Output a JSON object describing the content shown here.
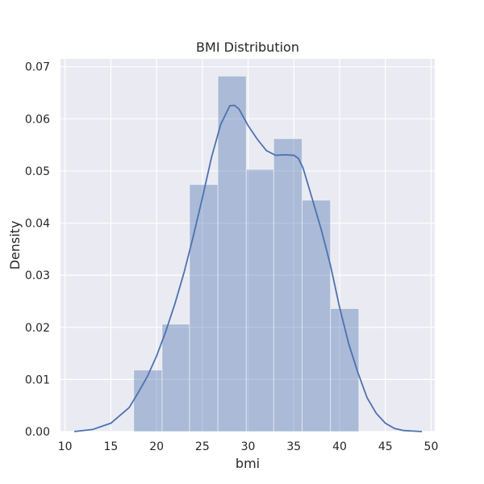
{
  "chart_data": {
    "type": "bar",
    "title": "BMI Distribution",
    "xlabel": "bmi",
    "ylabel": "Density",
    "xlim": [
      9.5,
      50.4
    ],
    "ylim": [
      0,
      0.0715
    ],
    "x_ticks": [
      10,
      15,
      20,
      25,
      30,
      35,
      40,
      45,
      50
    ],
    "y_ticks": [
      "0.00",
      "0.01",
      "0.02",
      "0.03",
      "0.04",
      "0.05",
      "0.06",
      "0.07"
    ],
    "bins": [
      {
        "x0": 17.5,
        "x1": 20.6,
        "density": 0.0118
      },
      {
        "x0": 20.6,
        "x1": 23.6,
        "density": 0.0206
      },
      {
        "x0": 23.6,
        "x1": 26.7,
        "density": 0.0474
      },
      {
        "x0": 26.7,
        "x1": 29.8,
        "density": 0.0682
      },
      {
        "x0": 29.8,
        "x1": 32.8,
        "density": 0.0503
      },
      {
        "x0": 32.8,
        "x1": 35.9,
        "density": 0.0562
      },
      {
        "x0": 35.9,
        "x1": 39.0,
        "density": 0.0444
      },
      {
        "x0": 39.0,
        "x1": 42.1,
        "density": 0.0236
      }
    ],
    "kde": {
      "x": [
        11,
        13,
        15,
        17,
        18,
        19,
        20,
        21,
        22,
        23,
        24,
        25,
        26,
        27,
        28,
        28.5,
        29,
        30,
        31,
        32,
        33,
        34,
        35,
        35.5,
        36,
        37,
        38,
        39,
        40,
        41,
        42,
        43,
        44,
        45,
        46,
        47,
        48,
        49
      ],
      "y": [
        0.0,
        0.0004,
        0.0016,
        0.0046,
        0.0075,
        0.0106,
        0.0145,
        0.0192,
        0.0245,
        0.0305,
        0.0374,
        0.0448,
        0.0526,
        0.0589,
        0.0625,
        0.0626,
        0.0619,
        0.0587,
        0.0561,
        0.0539,
        0.053,
        0.0531,
        0.053,
        0.0524,
        0.0506,
        0.0447,
        0.0387,
        0.0319,
        0.0238,
        0.0168,
        0.0113,
        0.0065,
        0.0035,
        0.0016,
        0.0006,
        0.0002,
        0.0001,
        0.0
      ]
    },
    "grid": true,
    "colors": {
      "background": "#eaeaf2",
      "grid": "#ffffff",
      "bar_fill": "#4c72b0",
      "line": "#4c72b0"
    }
  }
}
